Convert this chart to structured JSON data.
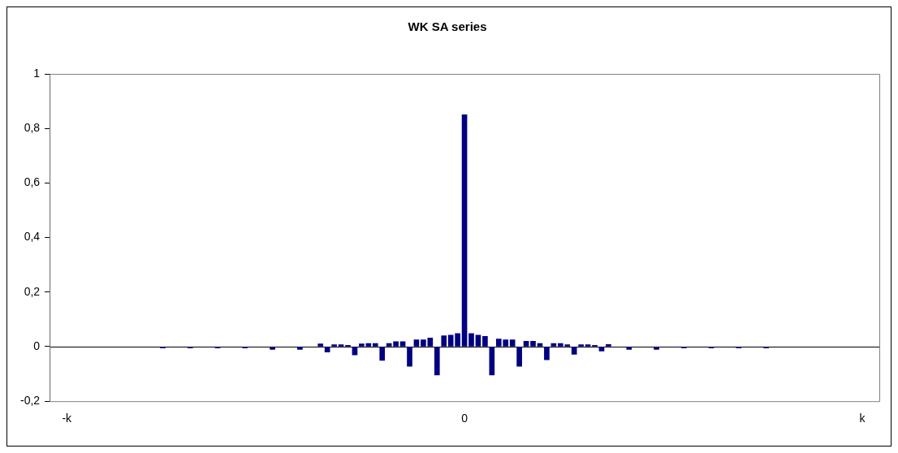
{
  "chart_data": {
    "type": "bar",
    "title": "WK SA series",
    "categories": [
      null,
      null,
      "-k",
      null,
      null,
      null,
      null,
      null,
      null,
      null,
      null,
      null,
      null,
      null,
      null,
      null,
      null,
      null,
      null,
      null,
      null,
      null,
      null,
      null,
      null,
      null,
      null,
      null,
      null,
      null,
      null,
      null,
      null,
      null,
      null,
      null,
      null,
      null,
      null,
      null,
      null,
      null,
      null,
      null,
      null,
      null,
      null,
      null,
      null,
      null,
      null,
      null,
      null,
      null,
      null,
      null,
      null,
      null,
      null,
      null,
      "0",
      null,
      null,
      null,
      null,
      null,
      null,
      null,
      null,
      null,
      null,
      null,
      null,
      null,
      null,
      null,
      null,
      null,
      null,
      null,
      null,
      null,
      null,
      null,
      null,
      null,
      null,
      null,
      null,
      null,
      null,
      null,
      null,
      null,
      null,
      null,
      null,
      null,
      null,
      null,
      null,
      null,
      null,
      null,
      null,
      null,
      null,
      null,
      null,
      null,
      null,
      null,
      null,
      null,
      null,
      null,
      null,
      null,
      "k",
      null,
      null
    ],
    "values": [
      null,
      null,
      null,
      null,
      null,
      null,
      null,
      null,
      null,
      null,
      null,
      null,
      null,
      null,
      null,
      null,
      -0.005,
      null,
      null,
      null,
      -0.005,
      null,
      null,
      null,
      -0.005,
      null,
      null,
      null,
      -0.005,
      null,
      null,
      null,
      -0.01,
      null,
      null,
      null,
      -0.01,
      null,
      null,
      0.01,
      -0.02,
      0.007,
      0.007,
      0.005,
      -0.03,
      0.01,
      0.012,
      0.012,
      -0.05,
      0.012,
      0.018,
      0.018,
      -0.072,
      0.025,
      0.025,
      0.032,
      -0.104,
      0.04,
      0.042,
      0.048,
      0.85,
      0.048,
      0.042,
      0.038,
      -0.104,
      0.028,
      0.025,
      0.025,
      -0.072,
      0.02,
      0.02,
      0.012,
      -0.048,
      0.012,
      0.012,
      0.007,
      -0.028,
      0.007,
      0.007,
      0.005,
      -0.016,
      0.008,
      null,
      null,
      -0.01,
      null,
      null,
      null,
      -0.01,
      null,
      null,
      null,
      -0.005,
      null,
      null,
      null,
      -0.005,
      null,
      null,
      null,
      -0.005,
      null,
      null,
      null,
      -0.005,
      null,
      null,
      null,
      null,
      null,
      null,
      null,
      null,
      null,
      null,
      null,
      null,
      null,
      null,
      null,
      null
    ],
    "color": "#000080",
    "ylim": [
      -0.2,
      1
    ],
    "yticks": [
      {
        "value": -0.2,
        "label": "-0,2"
      },
      0,
      {
        "value": 0.2,
        "label": "0,2"
      },
      {
        "value": 0.4,
        "label": "0,4"
      },
      {
        "value": 0.6,
        "label": "0,6"
      },
      {
        "value": 0.8,
        "label": "0,8"
      },
      1
    ]
  }
}
